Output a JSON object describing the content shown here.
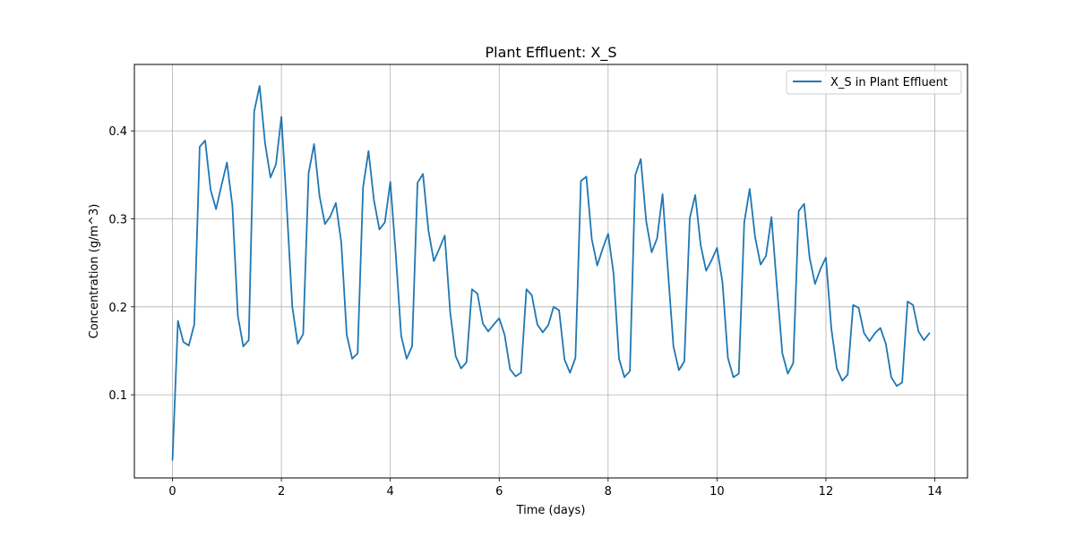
{
  "chart_data": {
    "type": "line",
    "title": "Plant Effluent: X_S",
    "xlabel": "Time (days)",
    "ylabel": "Concentration (g/m^3)",
    "xlim": [
      -0.7,
      14.6
    ],
    "ylim": [
      0.0055,
      0.4755
    ],
    "xticks": [
      0,
      2,
      4,
      6,
      8,
      10,
      12,
      14
    ],
    "yticks": [
      0.1,
      0.2,
      0.3,
      0.4
    ],
    "grid": true,
    "legend_position": "upper right",
    "series_color": "#1f77b4",
    "series": [
      {
        "name": "X_S in Plant Effluent",
        "x": [
          0.0,
          0.1,
          0.2,
          0.3,
          0.4,
          0.5,
          0.6,
          0.7,
          0.8,
          0.9,
          1.0,
          1.1,
          1.2,
          1.3,
          1.4,
          1.5,
          1.6,
          1.7,
          1.8,
          1.9,
          2.0,
          2.1,
          2.2,
          2.3,
          2.4,
          2.5,
          2.6,
          2.7,
          2.8,
          2.9,
          3.0,
          3.1,
          3.2,
          3.3,
          3.4,
          3.5,
          3.6,
          3.7,
          3.8,
          3.9,
          4.0,
          4.1,
          4.2,
          4.3,
          4.4,
          4.5,
          4.6,
          4.7,
          4.8,
          4.9,
          5.0,
          5.1,
          5.2,
          5.3,
          5.4,
          5.5,
          5.6,
          5.7,
          5.8,
          5.9,
          6.0,
          6.1,
          6.2,
          6.3,
          6.4,
          6.5,
          6.6,
          6.7,
          6.8,
          6.9,
          7.0,
          7.1,
          7.2,
          7.3,
          7.4,
          7.5,
          7.6,
          7.7,
          7.8,
          7.9,
          8.0,
          8.1,
          8.2,
          8.3,
          8.4,
          8.5,
          8.6,
          8.7,
          8.8,
          8.9,
          9.0,
          9.1,
          9.2,
          9.3,
          9.4,
          9.5,
          9.6,
          9.7,
          9.8,
          9.9,
          10.0,
          10.1,
          10.2,
          10.3,
          10.4,
          10.5,
          10.6,
          10.7,
          10.8,
          10.9,
          11.0,
          11.1,
          11.2,
          11.3,
          11.4,
          11.5,
          11.6,
          11.7,
          11.8,
          11.9,
          12.0,
          12.1,
          12.2,
          12.3,
          12.4,
          12.5,
          12.6,
          12.7,
          12.8,
          12.9,
          13.0,
          13.1,
          13.2,
          13.3,
          13.4,
          13.5,
          13.6,
          13.7,
          13.8,
          13.9
        ],
        "y": [
          0.026,
          0.184,
          0.16,
          0.156,
          0.18,
          0.382,
          0.389,
          0.333,
          0.311,
          0.338,
          0.364,
          0.315,
          0.19,
          0.155,
          0.162,
          0.422,
          0.451,
          0.386,
          0.347,
          0.362,
          0.416,
          0.312,
          0.2,
          0.158,
          0.169,
          0.352,
          0.385,
          0.326,
          0.294,
          0.303,
          0.318,
          0.273,
          0.168,
          0.141,
          0.147,
          0.336,
          0.377,
          0.321,
          0.288,
          0.296,
          0.342,
          0.26,
          0.167,
          0.141,
          0.155,
          0.341,
          0.351,
          0.287,
          0.252,
          0.266,
          0.281,
          0.194,
          0.144,
          0.13,
          0.137,
          0.22,
          0.215,
          0.181,
          0.172,
          0.18,
          0.187,
          0.168,
          0.129,
          0.121,
          0.125,
          0.22,
          0.213,
          0.18,
          0.171,
          0.179,
          0.2,
          0.196,
          0.14,
          0.125,
          0.142,
          0.343,
          0.348,
          0.277,
          0.247,
          0.266,
          0.283,
          0.238,
          0.141,
          0.12,
          0.127,
          0.35,
          0.368,
          0.297,
          0.262,
          0.278,
          0.328,
          0.24,
          0.155,
          0.128,
          0.138,
          0.301,
          0.327,
          0.27,
          0.241,
          0.253,
          0.267,
          0.228,
          0.142,
          0.12,
          0.124,
          0.296,
          0.334,
          0.279,
          0.248,
          0.258,
          0.302,
          0.223,
          0.147,
          0.124,
          0.136,
          0.309,
          0.317,
          0.256,
          0.226,
          0.243,
          0.256,
          0.175,
          0.13,
          0.116,
          0.123,
          0.202,
          0.199,
          0.17,
          0.161,
          0.17,
          0.176,
          0.158,
          0.12,
          0.11,
          0.114,
          0.206,
          0.202,
          0.172,
          0.162,
          0.17
        ]
      }
    ]
  }
}
